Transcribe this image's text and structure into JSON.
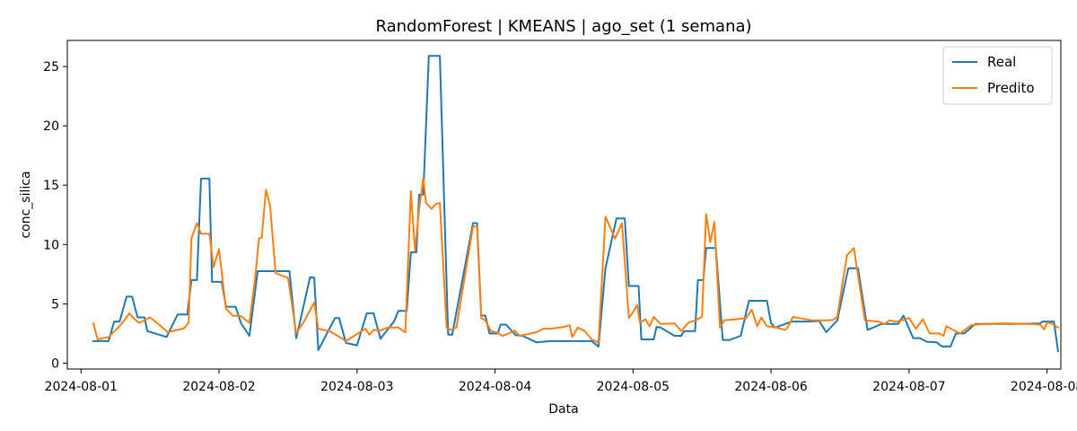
{
  "chart_data": {
    "type": "line",
    "title": "RandomForest | KMEANS | ago_set (1 semana)",
    "xlabel": "Data",
    "ylabel": "conc_silica",
    "xlim": [
      -0.0993,
      7.1
    ],
    "ylim": [
      -0.5,
      27.2
    ],
    "x_ticks": [
      {
        "label": "2024-08-01",
        "value": 0
      },
      {
        "label": "2024-08-02",
        "value": 1
      },
      {
        "label": "2024-08-03",
        "value": 2
      },
      {
        "label": "2024-08-04",
        "value": 3
      },
      {
        "label": "2024-08-05",
        "value": 4
      },
      {
        "label": "2024-08-06",
        "value": 5
      },
      {
        "label": "2024-08-07",
        "value": 6
      },
      {
        "label": "2024-08-08",
        "value": 7
      }
    ],
    "y_ticks": [
      0,
      5,
      10,
      15,
      20,
      25
    ],
    "legend": {
      "position": "top-right"
    },
    "series": [
      {
        "name": "Real",
        "color": "#1f77b4",
        "points": [
          [
            0.09,
            1.85
          ],
          [
            0.2,
            1.85
          ],
          [
            0.24,
            3.5
          ],
          [
            0.28,
            3.5
          ],
          [
            0.33,
            5.6
          ],
          [
            0.37,
            5.6
          ],
          [
            0.41,
            3.85
          ],
          [
            0.46,
            3.85
          ],
          [
            0.48,
            2.7
          ],
          [
            0.62,
            2.2
          ],
          [
            0.7,
            4.1
          ],
          [
            0.77,
            4.1
          ],
          [
            0.8,
            7.0
          ],
          [
            0.84,
            7.0
          ],
          [
            0.87,
            15.55
          ],
          [
            0.93,
            15.55
          ],
          [
            0.95,
            6.85
          ],
          [
            1.02,
            6.85
          ],
          [
            1.05,
            4.75
          ],
          [
            1.12,
            4.75
          ],
          [
            1.16,
            3.35
          ],
          [
            1.22,
            2.3
          ],
          [
            1.28,
            7.75
          ],
          [
            1.51,
            7.75
          ],
          [
            1.56,
            2.1
          ],
          [
            1.66,
            7.25
          ],
          [
            1.69,
            7.2
          ],
          [
            1.72,
            1.1
          ],
          [
            1.84,
            3.8
          ],
          [
            1.87,
            3.8
          ],
          [
            1.92,
            1.7
          ],
          [
            2.0,
            1.5
          ],
          [
            2.07,
            4.2
          ],
          [
            2.12,
            4.2
          ],
          [
            2.17,
            2.05
          ],
          [
            2.27,
            3.55
          ],
          [
            2.3,
            4.4
          ],
          [
            2.36,
            4.4
          ],
          [
            2.39,
            9.35
          ],
          [
            2.43,
            9.35
          ],
          [
            2.45,
            14.2
          ],
          [
            2.48,
            14.2
          ],
          [
            2.52,
            25.9
          ],
          [
            2.6,
            25.9
          ],
          [
            2.66,
            2.4
          ],
          [
            2.69,
            2.4
          ],
          [
            2.84,
            11.8
          ],
          [
            2.87,
            11.8
          ],
          [
            2.9,
            4.0
          ],
          [
            2.93,
            4.0
          ],
          [
            2.96,
            2.5
          ],
          [
            3.02,
            2.5
          ],
          [
            3.04,
            3.25
          ],
          [
            3.08,
            3.25
          ],
          [
            3.15,
            2.35
          ],
          [
            3.2,
            2.3
          ],
          [
            3.3,
            1.75
          ],
          [
            3.4,
            1.85
          ],
          [
            3.7,
            1.85
          ],
          [
            3.75,
            1.4
          ],
          [
            3.8,
            8.0
          ],
          [
            3.88,
            12.2
          ],
          [
            3.94,
            12.2
          ],
          [
            3.97,
            6.5
          ],
          [
            4.04,
            6.5
          ],
          [
            4.06,
            2.0
          ],
          [
            4.15,
            2.0
          ],
          [
            4.17,
            3.05
          ],
          [
            4.2,
            3.0
          ],
          [
            4.25,
            2.65
          ],
          [
            4.3,
            2.3
          ],
          [
            4.35,
            2.3
          ],
          [
            4.37,
            2.7
          ],
          [
            4.45,
            2.7
          ],
          [
            4.47,
            7.0
          ],
          [
            4.51,
            7.0
          ],
          [
            4.53,
            9.7
          ],
          [
            4.6,
            9.7
          ],
          [
            4.65,
            1.95
          ],
          [
            4.7,
            1.95
          ],
          [
            4.78,
            2.3
          ],
          [
            4.84,
            5.25
          ],
          [
            4.97,
            5.25
          ],
          [
            5.0,
            3.35
          ],
          [
            5.03,
            3.0
          ],
          [
            5.08,
            3.2
          ],
          [
            5.15,
            3.5
          ],
          [
            5.2,
            3.5
          ],
          [
            5.27,
            3.5
          ],
          [
            5.35,
            3.55
          ],
          [
            5.4,
            2.6
          ],
          [
            5.48,
            3.6
          ],
          [
            5.56,
            8.0
          ],
          [
            5.63,
            8.0
          ],
          [
            5.7,
            2.8
          ],
          [
            5.8,
            3.3
          ],
          [
            5.92,
            3.3
          ],
          [
            5.96,
            4.0
          ],
          [
            6.03,
            2.1
          ],
          [
            6.08,
            2.1
          ],
          [
            6.13,
            1.8
          ],
          [
            6.2,
            1.75
          ],
          [
            6.24,
            1.4
          ],
          [
            6.3,
            1.4
          ],
          [
            6.34,
            2.5
          ],
          [
            6.4,
            2.5
          ],
          [
            6.48,
            3.3
          ],
          [
            6.6,
            3.3
          ],
          [
            6.8,
            3.3
          ],
          [
            6.95,
            3.35
          ],
          [
            6.97,
            3.5
          ],
          [
            7.05,
            3.5
          ],
          [
            7.08,
            1.0
          ]
        ]
      },
      {
        "name": "Predito",
        "color": "#ff7f0e",
        "points": [
          [
            0.09,
            3.35
          ],
          [
            0.12,
            2.0
          ],
          [
            0.2,
            2.2
          ],
          [
            0.27,
            3.0
          ],
          [
            0.32,
            3.7
          ],
          [
            0.35,
            4.2
          ],
          [
            0.38,
            3.8
          ],
          [
            0.42,
            3.4
          ],
          [
            0.46,
            3.6
          ],
          [
            0.5,
            3.85
          ],
          [
            0.57,
            3.2
          ],
          [
            0.63,
            2.6
          ],
          [
            0.7,
            2.8
          ],
          [
            0.74,
            2.9
          ],
          [
            0.76,
            3.1
          ],
          [
            0.78,
            3.4
          ],
          [
            0.8,
            10.5
          ],
          [
            0.84,
            11.8
          ],
          [
            0.87,
            10.9
          ],
          [
            0.93,
            10.9
          ],
          [
            0.96,
            8.1
          ],
          [
            1.0,
            9.6
          ],
          [
            1.05,
            4.6
          ],
          [
            1.1,
            4.0
          ],
          [
            1.16,
            3.95
          ],
          [
            1.22,
            3.4
          ],
          [
            1.26,
            7.0
          ],
          [
            1.29,
            10.5
          ],
          [
            1.31,
            10.6
          ],
          [
            1.34,
            14.6
          ],
          [
            1.37,
            13.3
          ],
          [
            1.41,
            7.6
          ],
          [
            1.45,
            7.4
          ],
          [
            1.5,
            7.2
          ],
          [
            1.56,
            2.5
          ],
          [
            1.62,
            3.6
          ],
          [
            1.69,
            5.1
          ],
          [
            1.72,
            2.9
          ],
          [
            1.8,
            2.7
          ],
          [
            1.86,
            2.3
          ],
          [
            1.92,
            1.85
          ],
          [
            2.02,
            2.6
          ],
          [
            2.06,
            2.9
          ],
          [
            2.09,
            2.4
          ],
          [
            2.12,
            2.8
          ],
          [
            2.17,
            2.75
          ],
          [
            2.22,
            3.0
          ],
          [
            2.3,
            3.0
          ],
          [
            2.35,
            2.6
          ],
          [
            2.39,
            14.5
          ],
          [
            2.42,
            9.5
          ],
          [
            2.45,
            13.0
          ],
          [
            2.48,
            15.6
          ],
          [
            2.5,
            13.5
          ],
          [
            2.54,
            13.0
          ],
          [
            2.57,
            13.4
          ],
          [
            2.6,
            13.5
          ],
          [
            2.65,
            3.0
          ],
          [
            2.68,
            2.8
          ],
          [
            2.72,
            3.0
          ],
          [
            2.84,
            11.5
          ],
          [
            2.87,
            11.5
          ],
          [
            2.9,
            3.8
          ],
          [
            2.93,
            3.6
          ],
          [
            2.97,
            2.7
          ],
          [
            3.02,
            2.55
          ],
          [
            3.05,
            2.3
          ],
          [
            3.09,
            2.45
          ],
          [
            3.14,
            2.75
          ],
          [
            3.18,
            2.3
          ],
          [
            3.3,
            2.6
          ],
          [
            3.35,
            2.9
          ],
          [
            3.4,
            2.9
          ],
          [
            3.5,
            3.05
          ],
          [
            3.54,
            3.2
          ],
          [
            3.56,
            2.2
          ],
          [
            3.6,
            3.0
          ],
          [
            3.65,
            2.7
          ],
          [
            3.7,
            2.0
          ],
          [
            3.75,
            1.75
          ],
          [
            3.8,
            12.35
          ],
          [
            3.87,
            10.5
          ],
          [
            3.92,
            11.8
          ],
          [
            3.97,
            3.8
          ],
          [
            4.0,
            4.3
          ],
          [
            4.03,
            4.9
          ],
          [
            4.05,
            3.4
          ],
          [
            4.09,
            3.7
          ],
          [
            4.12,
            3.1
          ],
          [
            4.15,
            3.9
          ],
          [
            4.2,
            3.3
          ],
          [
            4.3,
            3.35
          ],
          [
            4.35,
            2.7
          ],
          [
            4.4,
            3.4
          ],
          [
            4.45,
            3.6
          ],
          [
            4.5,
            3.9
          ],
          [
            4.53,
            12.55
          ],
          [
            4.56,
            10.2
          ],
          [
            4.59,
            11.9
          ],
          [
            4.63,
            3.0
          ],
          [
            4.66,
            3.6
          ],
          [
            4.75,
            3.7
          ],
          [
            4.82,
            3.8
          ],
          [
            4.86,
            4.5
          ],
          [
            4.9,
            3.1
          ],
          [
            4.93,
            3.85
          ],
          [
            4.97,
            3.1
          ],
          [
            5.02,
            3.05
          ],
          [
            5.1,
            2.8
          ],
          [
            5.12,
            3.0
          ],
          [
            5.16,
            3.9
          ],
          [
            5.2,
            3.8
          ],
          [
            5.3,
            3.6
          ],
          [
            5.4,
            3.6
          ],
          [
            5.45,
            3.65
          ],
          [
            5.48,
            3.9
          ],
          [
            5.55,
            9.1
          ],
          [
            5.6,
            9.7
          ],
          [
            5.68,
            3.6
          ],
          [
            5.78,
            3.5
          ],
          [
            5.82,
            3.3
          ],
          [
            5.86,
            3.6
          ],
          [
            5.9,
            3.5
          ],
          [
            5.95,
            3.6
          ],
          [
            6.0,
            3.8
          ],
          [
            6.05,
            2.9
          ],
          [
            6.1,
            3.7
          ],
          [
            6.15,
            2.5
          ],
          [
            6.22,
            2.5
          ],
          [
            6.25,
            2.3
          ],
          [
            6.27,
            3.1
          ],
          [
            6.32,
            2.8
          ],
          [
            6.37,
            2.5
          ],
          [
            6.45,
            3.2
          ],
          [
            6.55,
            3.3
          ],
          [
            6.7,
            3.35
          ],
          [
            6.85,
            3.3
          ],
          [
            6.95,
            3.25
          ],
          [
            6.98,
            2.85
          ],
          [
            7.0,
            3.45
          ],
          [
            7.04,
            3.3
          ],
          [
            7.08,
            3.0
          ]
        ]
      }
    ]
  }
}
